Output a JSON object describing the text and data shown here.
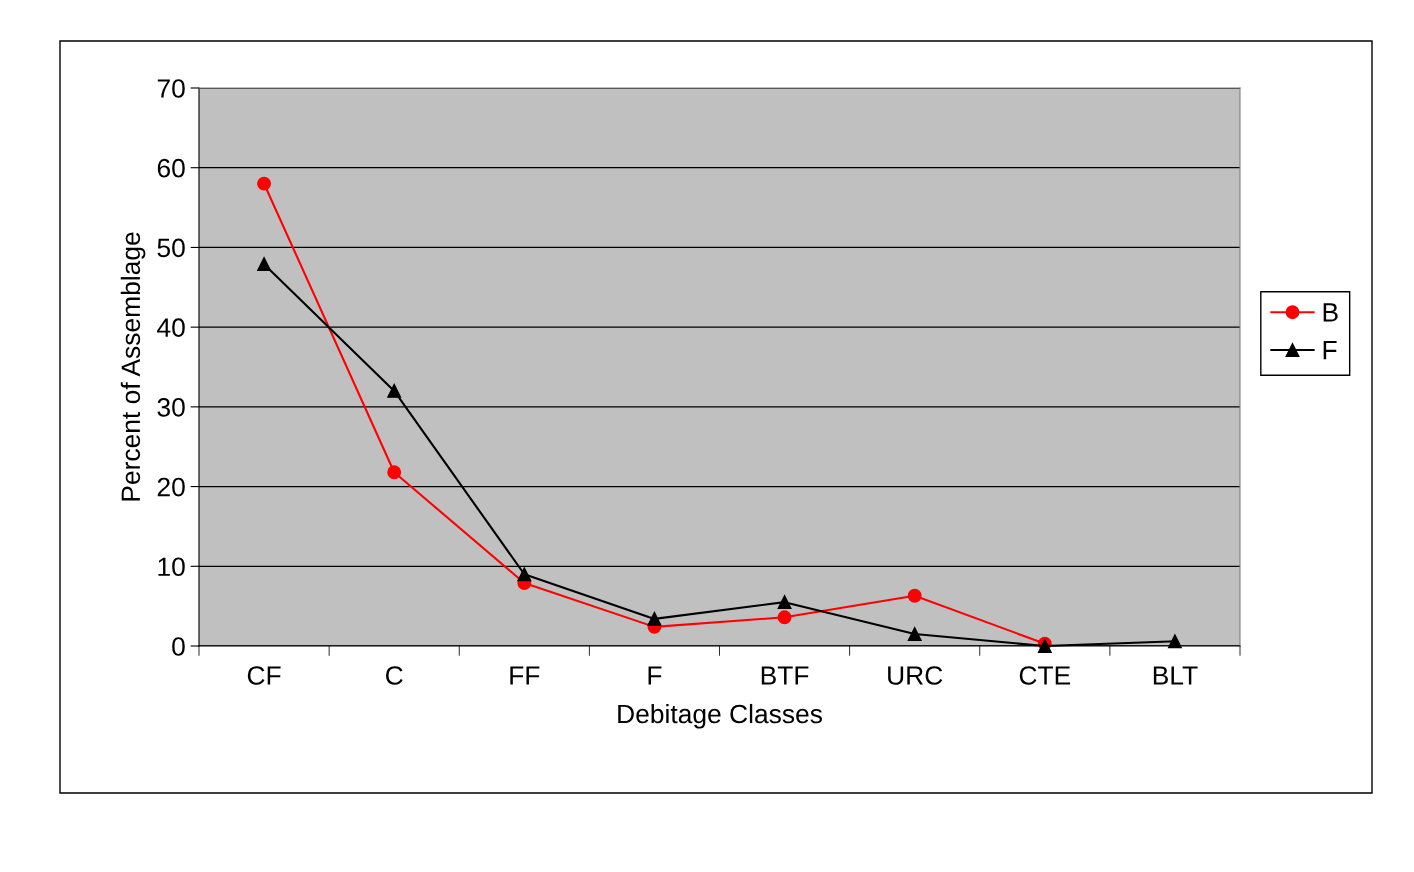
{
  "chart_data": {
    "type": "line",
    "xlabel": "Debitage Classes",
    "ylabel": "Percent of Assemblage",
    "categories": [
      "CF",
      "C",
      "FF",
      "F",
      "BTF",
      "URC",
      "CTE",
      "BLT"
    ],
    "series": [
      {
        "name": "B",
        "color": "#ff0000",
        "marker": "circle",
        "values": [
          58.0,
          21.8,
          7.9,
          2.4,
          3.6,
          6.3,
          0.3,
          null
        ]
      },
      {
        "name": "F",
        "color": "#000000",
        "marker": "triangle",
        "values": [
          47.9,
          32.0,
          9.0,
          3.4,
          5.5,
          1.5,
          0.0,
          0.6
        ]
      }
    ],
    "ylim": [
      0,
      70
    ],
    "yticks": [
      0,
      10,
      20,
      30,
      40,
      50,
      60,
      70
    ],
    "grid": "y",
    "legend": "right",
    "line_style": "solid"
  }
}
